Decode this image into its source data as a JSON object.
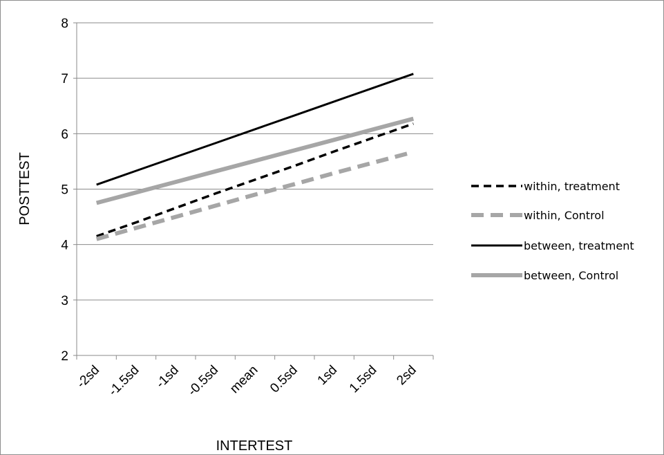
{
  "chart_data": {
    "type": "line",
    "xlabel": "INTERTEST",
    "ylabel": "POSTTEST",
    "categories": [
      "-2sd",
      "-1.5sd",
      "-1sd",
      "-0.5sd",
      "mean",
      "0.5sd",
      "1sd",
      "1.5sd",
      "2sd"
    ],
    "ylim": [
      2,
      8
    ],
    "yticks": [
      2,
      3,
      4,
      5,
      6,
      7,
      8
    ],
    "grid": true,
    "legend_position": "right",
    "series": [
      {
        "name": "within, treatment",
        "style": "dashed",
        "color": "#000000",
        "values": [
          4.15,
          4.4,
          4.66,
          4.92,
          5.17,
          5.42,
          5.68,
          5.93,
          6.18
        ]
      },
      {
        "name": "within, Control",
        "style": "dashed",
        "color": "#a6a6a6",
        "values": [
          4.1,
          4.3,
          4.5,
          4.7,
          4.9,
          5.09,
          5.29,
          5.48,
          5.67
        ]
      },
      {
        "name": "between, treatment",
        "style": "solid",
        "color": "#000000",
        "values": [
          5.08,
          5.33,
          5.58,
          5.83,
          6.08,
          6.33,
          6.58,
          6.83,
          7.08
        ]
      },
      {
        "name": "between, Control",
        "style": "solid",
        "color": "#a6a6a6",
        "values": [
          4.75,
          4.94,
          5.13,
          5.32,
          5.51,
          5.7,
          5.89,
          6.08,
          6.27
        ]
      }
    ]
  }
}
